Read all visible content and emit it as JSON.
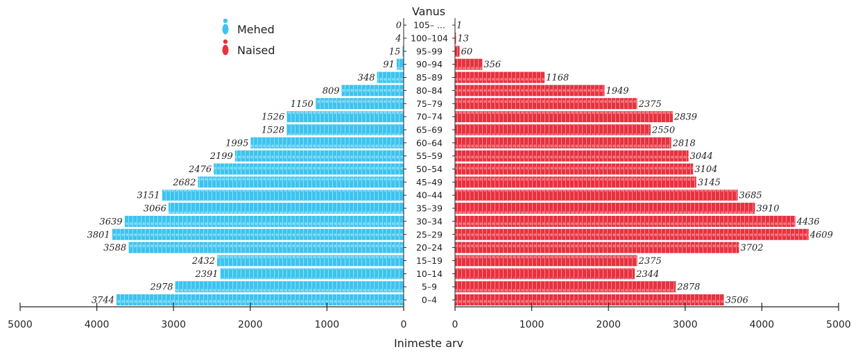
{
  "colors": {
    "male": "#3cc4ef",
    "female": "#e8313f",
    "axis": "#222222"
  },
  "chart_data": {
    "type": "bar",
    "title": "Vanus",
    "xlabel": "Inimeste arv",
    "ylabel": "",
    "xlim": [
      0,
      5000
    ],
    "x_ticks": [
      "5000",
      "4000",
      "3000",
      "2000",
      "1000",
      "0",
      "0",
      "1000",
      "2000",
      "3000",
      "4000",
      "5000"
    ],
    "legend_position": "top-left",
    "grid": false,
    "categories": [
      "0–4",
      "5–9",
      "10–14",
      "15–19",
      "20–24",
      "25–29",
      "30–34",
      "35–39",
      "40–44",
      "45–49",
      "50–54",
      "55–59",
      "60–64",
      "65–69",
      "70–74",
      "75–79",
      "80–84",
      "85–89",
      "90–94",
      "95–99",
      "100–104",
      "105– ..."
    ],
    "series": [
      {
        "name": "Mehed",
        "values": [
          3744,
          2978,
          2391,
          2432,
          3588,
          3801,
          3639,
          3066,
          3151,
          2682,
          2476,
          2199,
          1995,
          1528,
          1526,
          1150,
          809,
          348,
          91,
          15,
          4,
          0
        ]
      },
      {
        "name": "Naised",
        "values": [
          3506,
          2878,
          2344,
          2375,
          3702,
          4609,
          4436,
          3910,
          3685,
          3145,
          3104,
          3044,
          2818,
          2550,
          2839,
          2375,
          1949,
          1168,
          356,
          60,
          13,
          1
        ]
      }
    ]
  }
}
